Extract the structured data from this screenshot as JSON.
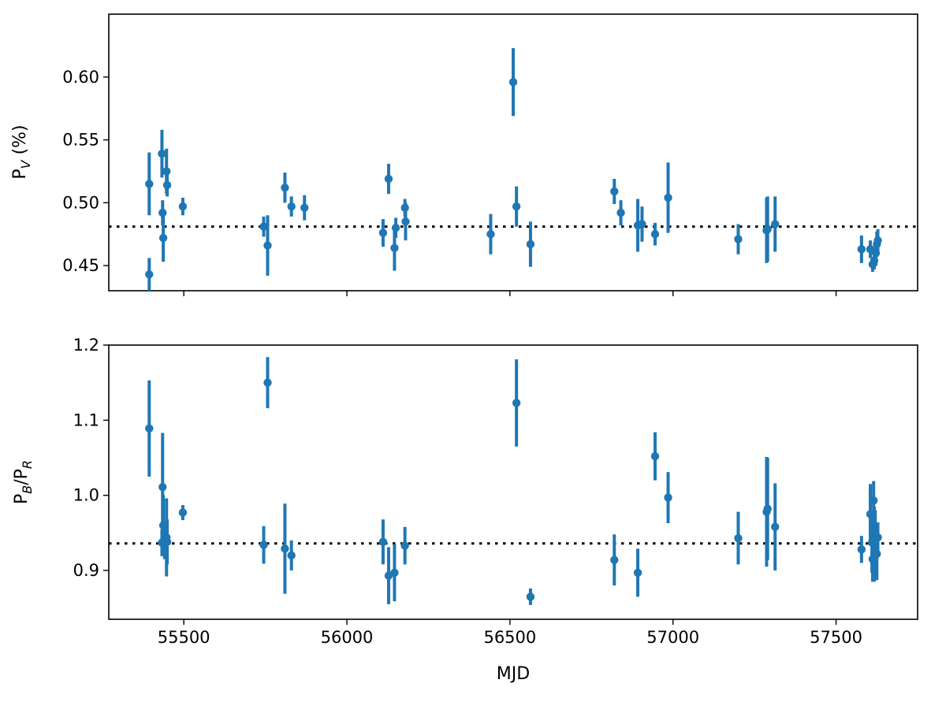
{
  "chart_data": [
    {
      "type": "scatter",
      "panel": "top",
      "xlabel": "",
      "ylabel_main": "P",
      "ylabel_sub": "V",
      "ylabel_tail": " (%)",
      "xlim": [
        55270,
        57750
      ],
      "ylim": [
        0.43,
        0.65
      ],
      "yticks": [
        0.45,
        0.5,
        0.55,
        0.6
      ],
      "ytick_labels": [
        "0.45",
        "0.50",
        "0.55",
        "0.60"
      ],
      "xticks": [
        55500,
        56000,
        56500,
        57000,
        57500
      ],
      "show_xtick_labels": false,
      "grid": false,
      "color": "#1f77b4",
      "reference_y": 0.481,
      "points": [
        {
          "x": 55394,
          "y": 0.443,
          "err": 0.013
        },
        {
          "x": 55394,
          "y": 0.515,
          "err": 0.025
        },
        {
          "x": 55433,
          "y": 0.539,
          "err": 0.019
        },
        {
          "x": 55435,
          "y": 0.492,
          "err": 0.01
        },
        {
          "x": 55437,
          "y": 0.472,
          "err": 0.019
        },
        {
          "x": 55447,
          "y": 0.525,
          "err": 0.018
        },
        {
          "x": 55449,
          "y": 0.514,
          "err": 0.009
        },
        {
          "x": 55497,
          "y": 0.497,
          "err": 0.007
        },
        {
          "x": 55745,
          "y": 0.481,
          "err": 0.008
        },
        {
          "x": 55757,
          "y": 0.466,
          "err": 0.024
        },
        {
          "x": 55810,
          "y": 0.512,
          "err": 0.012
        },
        {
          "x": 55830,
          "y": 0.497,
          "err": 0.008
        },
        {
          "x": 55870,
          "y": 0.496,
          "err": 0.01
        },
        {
          "x": 56111,
          "y": 0.476,
          "err": 0.011
        },
        {
          "x": 56128,
          "y": 0.519,
          "err": 0.012
        },
        {
          "x": 56146,
          "y": 0.464,
          "err": 0.018
        },
        {
          "x": 56150,
          "y": 0.48,
          "err": 0.008
        },
        {
          "x": 56178,
          "y": 0.496,
          "err": 0.007
        },
        {
          "x": 56180,
          "y": 0.485,
          "err": 0.015
        },
        {
          "x": 56441,
          "y": 0.475,
          "err": 0.016
        },
        {
          "x": 56510,
          "y": 0.596,
          "err": 0.027
        },
        {
          "x": 56520,
          "y": 0.497,
          "err": 0.016
        },
        {
          "x": 56563,
          "y": 0.467,
          "err": 0.018
        },
        {
          "x": 56820,
          "y": 0.509,
          "err": 0.01
        },
        {
          "x": 56840,
          "y": 0.492,
          "err": 0.01
        },
        {
          "x": 56892,
          "y": 0.482,
          "err": 0.021
        },
        {
          "x": 56905,
          "y": 0.483,
          "err": 0.014
        },
        {
          "x": 56945,
          "y": 0.475,
          "err": 0.009
        },
        {
          "x": 56985,
          "y": 0.504,
          "err": 0.028
        },
        {
          "x": 57200,
          "y": 0.471,
          "err": 0.012
        },
        {
          "x": 57287,
          "y": 0.478,
          "err": 0.026
        },
        {
          "x": 57290,
          "y": 0.479,
          "err": 0.026
        },
        {
          "x": 57313,
          "y": 0.483,
          "err": 0.022
        },
        {
          "x": 57578,
          "y": 0.463,
          "err": 0.011
        },
        {
          "x": 57605,
          "y": 0.463,
          "err": 0.007
        },
        {
          "x": 57612,
          "y": 0.451,
          "err": 0.006
        },
        {
          "x": 57617,
          "y": 0.454,
          "err": 0.007
        },
        {
          "x": 57622,
          "y": 0.46,
          "err": 0.01
        },
        {
          "x": 57625,
          "y": 0.467,
          "err": 0.01
        },
        {
          "x": 57628,
          "y": 0.47,
          "err": 0.009
        }
      ]
    },
    {
      "type": "scatter",
      "panel": "bottom",
      "xlabel": "MJD",
      "ylabel_main": "P",
      "ylabel_sub": "B",
      "ylabel_mid": "/P",
      "ylabel_sub2": "R",
      "xlim": [
        55270,
        57750
      ],
      "ylim": [
        0.835,
        1.2
      ],
      "yticks": [
        0.9,
        1.0,
        1.1,
        1.2
      ],
      "ytick_labels": [
        "0.9",
        "1.0",
        "1.1",
        "1.2"
      ],
      "xticks": [
        55500,
        56000,
        56500,
        57000,
        57500
      ],
      "xtick_labels": [
        "55500",
        "56000",
        "56500",
        "57000",
        "57500"
      ],
      "grid": false,
      "color": "#1f77b4",
      "reference_y": 0.936,
      "points": [
        {
          "x": 55394,
          "y": 1.089,
          "err": 0.064
        },
        {
          "x": 55433,
          "y": 0.937,
          "err": 0.018
        },
        {
          "x": 55435,
          "y": 1.011,
          "err": 0.072
        },
        {
          "x": 55437,
          "y": 0.96,
          "err": 0.04
        },
        {
          "x": 55441,
          "y": 0.935,
          "err": 0.02
        },
        {
          "x": 55447,
          "y": 0.944,
          "err": 0.052
        },
        {
          "x": 55449,
          "y": 0.938,
          "err": 0.03
        },
        {
          "x": 55497,
          "y": 0.977,
          "err": 0.01
        },
        {
          "x": 55745,
          "y": 0.934,
          "err": 0.025
        },
        {
          "x": 55757,
          "y": 1.15,
          "err": 0.034
        },
        {
          "x": 55810,
          "y": 0.929,
          "err": 0.06
        },
        {
          "x": 55830,
          "y": 0.92,
          "err": 0.02
        },
        {
          "x": 56111,
          "y": 0.938,
          "err": 0.03
        },
        {
          "x": 56128,
          "y": 0.893,
          "err": 0.038
        },
        {
          "x": 56146,
          "y": 0.897,
          "err": 0.038
        },
        {
          "x": 56178,
          "y": 0.933,
          "err": 0.025
        },
        {
          "x": 56520,
          "y": 1.123,
          "err": 0.058
        },
        {
          "x": 56563,
          "y": 0.865,
          "err": 0.011
        },
        {
          "x": 56820,
          "y": 0.914,
          "err": 0.034
        },
        {
          "x": 56892,
          "y": 0.897,
          "err": 0.032
        },
        {
          "x": 56945,
          "y": 1.052,
          "err": 0.032
        },
        {
          "x": 56985,
          "y": 0.997,
          "err": 0.034
        },
        {
          "x": 57200,
          "y": 0.943,
          "err": 0.035
        },
        {
          "x": 57287,
          "y": 0.978,
          "err": 0.073
        },
        {
          "x": 57290,
          "y": 0.982,
          "err": 0.068
        },
        {
          "x": 57313,
          "y": 0.958,
          "err": 0.058
        },
        {
          "x": 57578,
          "y": 0.928,
          "err": 0.018
        },
        {
          "x": 57605,
          "y": 0.975,
          "err": 0.04
        },
        {
          "x": 57610,
          "y": 0.937,
          "err": 0.04
        },
        {
          "x": 57612,
          "y": 0.915,
          "err": 0.03
        },
        {
          "x": 57615,
          "y": 0.993,
          "err": 0.026
        },
        {
          "x": 57617,
          "y": 0.935,
          "err": 0.05
        },
        {
          "x": 57620,
          "y": 0.94,
          "err": 0.04
        },
        {
          "x": 57625,
          "y": 0.922,
          "err": 0.035
        },
        {
          "x": 57628,
          "y": 0.944,
          "err": 0.02
        }
      ]
    }
  ]
}
